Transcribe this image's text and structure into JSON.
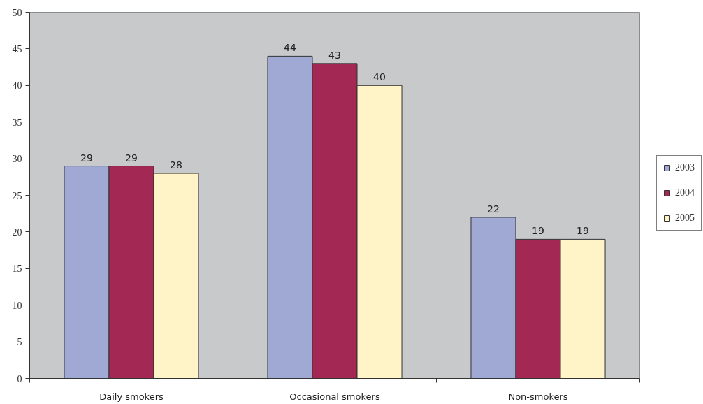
{
  "chart_data": {
    "type": "bar",
    "categories": [
      "Daily smokers",
      "Occasional smokers",
      "Non-smokers"
    ],
    "series": [
      {
        "name": "2003",
        "color": "#a0a8d4",
        "values": [
          29,
          44,
          22
        ]
      },
      {
        "name": "2004",
        "color": "#a32954",
        "values": [
          29,
          43,
          19
        ]
      },
      {
        "name": "2005",
        "color": "#fff3c8",
        "values": [
          28,
          40,
          19
        ]
      }
    ],
    "ylim": [
      0,
      50
    ],
    "yticks": [
      0,
      5,
      10,
      15,
      20,
      25,
      30,
      35,
      40,
      45,
      50
    ],
    "grid": false,
    "legend": "right",
    "data_labels": true
  }
}
